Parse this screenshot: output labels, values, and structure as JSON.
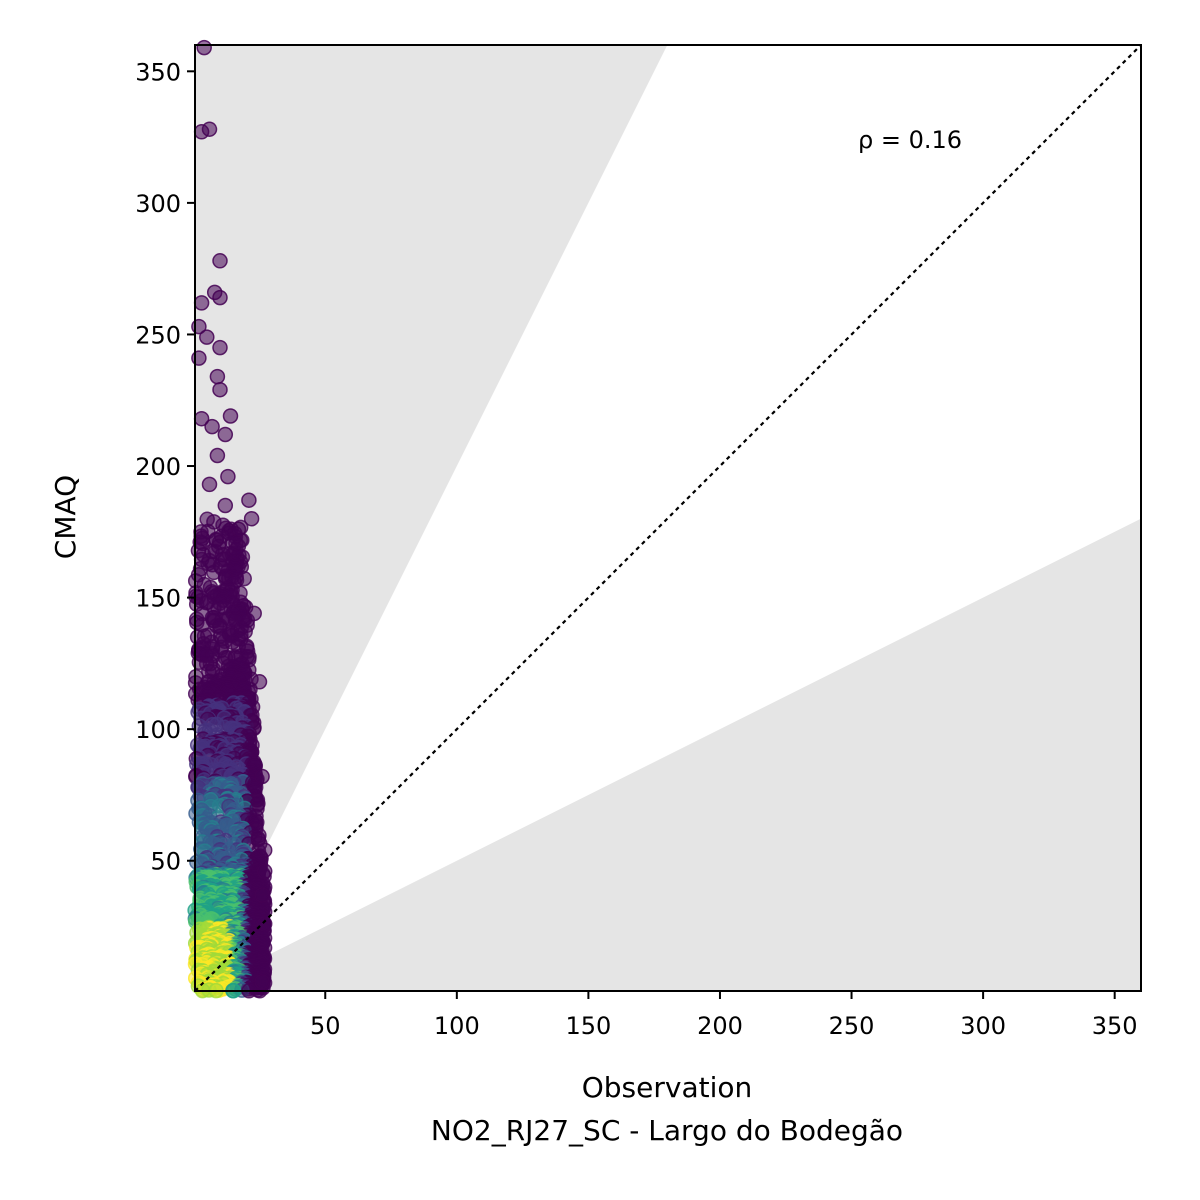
{
  "chart_data": {
    "type": "scatter",
    "xlabel": "Observation",
    "xlabel_sub": "NO2_RJ27_SC - Largo do Bodegão",
    "ylabel": "CMAQ",
    "xlim": [
      0.5,
      360
    ],
    "ylim": [
      0.5,
      360
    ],
    "xticks": [
      50,
      100,
      150,
      200,
      250,
      300,
      350
    ],
    "yticks": [
      50,
      100,
      150,
      200,
      250,
      300,
      350
    ],
    "annotation": "ρ = 0.16",
    "grid": false,
    "shaded_bands": {
      "lower_factor": 0.5,
      "upper_factor": 2.0,
      "color": "#e5e5e5"
    },
    "reference_line": {
      "slope": 1,
      "style": "dotted",
      "color": "#000000"
    },
    "colormap": "viridis",
    "point_color_meaning": "point density",
    "outlier_points": [
      {
        "x": 4,
        "y": 359
      },
      {
        "x": 6,
        "y": 328
      },
      {
        "x": 3,
        "y": 327
      },
      {
        "x": 10,
        "y": 278
      },
      {
        "x": 8,
        "y": 266
      },
      {
        "x": 10,
        "y": 264
      },
      {
        "x": 3,
        "y": 262
      },
      {
        "x": 2,
        "y": 253
      },
      {
        "x": 5,
        "y": 249
      },
      {
        "x": 10,
        "y": 245
      },
      {
        "x": 2,
        "y": 241
      },
      {
        "x": 9,
        "y": 234
      },
      {
        "x": 10,
        "y": 229
      },
      {
        "x": 3,
        "y": 218
      },
      {
        "x": 14,
        "y": 219
      },
      {
        "x": 7,
        "y": 215
      },
      {
        "x": 12,
        "y": 212
      },
      {
        "x": 9,
        "y": 204
      },
      {
        "x": 13,
        "y": 196
      },
      {
        "x": 6,
        "y": 193
      },
      {
        "x": 21,
        "y": 187
      },
      {
        "x": 12,
        "y": 185
      },
      {
        "x": 22,
        "y": 180
      },
      {
        "x": 17,
        "y": 176
      },
      {
        "x": 23,
        "y": 144
      },
      {
        "x": 25,
        "y": 118
      },
      {
        "x": 26,
        "y": 82
      },
      {
        "x": 27,
        "y": 54
      },
      {
        "x": 27,
        "y": 46
      },
      {
        "x": 26,
        "y": 37
      },
      {
        "x": 27,
        "y": 26
      },
      {
        "x": 26,
        "y": 4
      }
    ],
    "bulk_region": {
      "description": "dense cloud of points",
      "x_range": [
        0.5,
        27
      ],
      "y_range": [
        0.5,
        180
      ]
    }
  }
}
